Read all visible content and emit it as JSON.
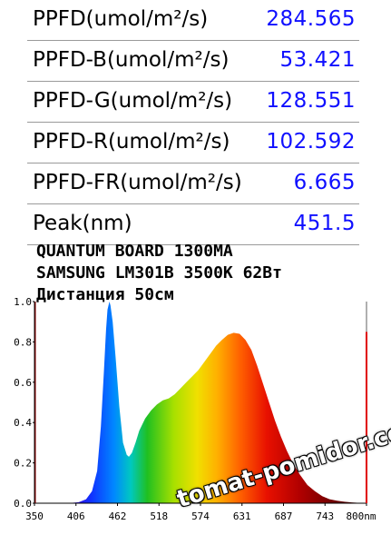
{
  "readings": [
    {
      "label": "PPFD(umol/m²/s)",
      "value": "284.565"
    },
    {
      "label": "PPFD-B(umol/m²/s)",
      "value": "53.421"
    },
    {
      "label": "PPFD-G(umol/m²/s)",
      "value": "128.551"
    },
    {
      "label": "PPFD-R(umol/m²/s)",
      "value": "102.592"
    },
    {
      "label": "PPFD-FR(umol/m²/s)",
      "value": "6.665"
    },
    {
      "label": "Peak(nm)",
      "value": "451.5"
    }
  ],
  "titles": {
    "line1": "QUANTUM BOARD 1300MA",
    "line2": "SAMSUNG LM301B 3500K 62Вт",
    "line3": "Дистанция 50см"
  },
  "watermark": "tomat-pomidor.com",
  "colors": {
    "value_text": "#1010ff",
    "axis": "#000000",
    "right_marker": "#e00000"
  },
  "chart_data": {
    "type": "area",
    "x_ticks": [
      "350",
      "406",
      "462",
      "518",
      "574",
      "631",
      "687",
      "743",
      "800nm"
    ],
    "y_ticks": [
      "0.0",
      "0.2",
      "0.4",
      "0.6",
      "0.8",
      "1.0"
    ],
    "xlim": [
      350,
      800
    ],
    "ylim": [
      0,
      1.0
    ],
    "series": [
      {
        "x": [
          380,
          395,
          410,
          420,
          428,
          435,
          440,
          444,
          447,
          449,
          451.5,
          453,
          456,
          460,
          465,
          470,
          475,
          478,
          482,
          487,
          492,
          500,
          508,
          516,
          524,
          532,
          540,
          548,
          556,
          564,
          572,
          580,
          588,
          596,
          604,
          612,
          620,
          628,
          636,
          644,
          652,
          660,
          668,
          676,
          684,
          692,
          700,
          710,
          720,
          730,
          740,
          750,
          760,
          770,
          780,
          790,
          800
        ],
        "y": [
          0,
          0,
          0.005,
          0.02,
          0.06,
          0.16,
          0.38,
          0.65,
          0.86,
          0.96,
          1.0,
          0.98,
          0.9,
          0.72,
          0.48,
          0.3,
          0.24,
          0.23,
          0.25,
          0.3,
          0.36,
          0.42,
          0.46,
          0.49,
          0.51,
          0.52,
          0.54,
          0.57,
          0.6,
          0.63,
          0.66,
          0.7,
          0.74,
          0.78,
          0.81,
          0.835,
          0.845,
          0.84,
          0.81,
          0.76,
          0.68,
          0.59,
          0.5,
          0.41,
          0.33,
          0.26,
          0.2,
          0.14,
          0.09,
          0.06,
          0.035,
          0.02,
          0.012,
          0.007,
          0.004,
          0.002,
          0.001
        ]
      }
    ]
  }
}
